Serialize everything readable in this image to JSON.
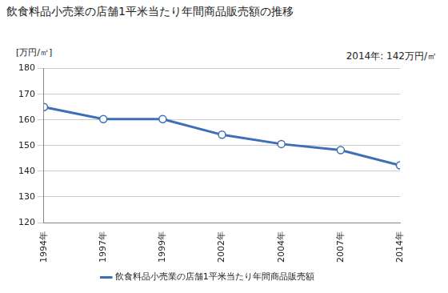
{
  "chart_data": {
    "type": "line",
    "title": "飲食料品小売業の店舗1平米当たり年間商品販売額の推移",
    "ylabel": "[万円/㎡]",
    "annotation": "2014年: 142万円/㎡",
    "categories": [
      "1994年",
      "1997年",
      "1999年",
      "2002年",
      "2004年",
      "2007年",
      "2014年"
    ],
    "series": [
      {
        "name": "飲食料品小売業の店舗1平米当たり年間商品販売額",
        "color": "#3d6fb6",
        "marker": "circle",
        "values": [
          165.0,
          160.3,
          160.3,
          154.2,
          150.6,
          148.2,
          142.3
        ]
      }
    ],
    "ylim": [
      120,
      180
    ],
    "yticks": [
      120,
      130,
      140,
      150,
      160,
      170,
      180
    ],
    "grid": true,
    "legend": "bottom"
  }
}
